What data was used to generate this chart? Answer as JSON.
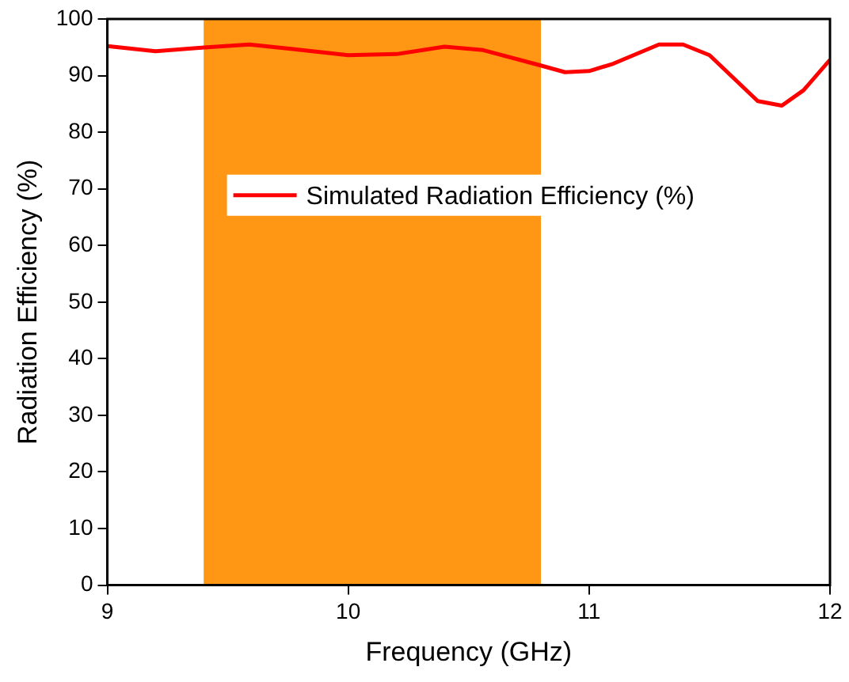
{
  "chart_data": {
    "type": "line",
    "xlabel": "Frequency (GHz)",
    "ylabel": "Radiation Efficiency (%)",
    "x": [
      9,
      9.2,
      9.38,
      9.59,
      9.77,
      10,
      10.2,
      10.4,
      10.56,
      10.79,
      10.9,
      11,
      11.1,
      11.29,
      11.39,
      11.5,
      11.7,
      11.8,
      11.89,
      12
    ],
    "series": [
      {
        "name": "Simulated Radiation Efficiency (%)",
        "color": "#ff0000",
        "values": [
          95.2,
          94.3,
          94.9,
          95.5,
          94.7,
          93.6,
          93.8,
          95.1,
          94.5,
          91.9,
          90.6,
          90.8,
          92.1,
          95.5,
          95.5,
          93.6,
          85.5,
          84.7,
          87.4,
          92.8
        ]
      }
    ],
    "bands": [
      {
        "axis": "x",
        "from": 9.4,
        "to": 10.8,
        "color": "#ff9614"
      }
    ],
    "xlim": [
      9,
      12
    ],
    "xticks": [
      9,
      10,
      11,
      12
    ],
    "ylim": [
      0,
      100
    ],
    "yticks": [
      0,
      10,
      20,
      30,
      40,
      50,
      60,
      70,
      80,
      90,
      100
    ],
    "grid": false,
    "legend": "top",
    "marker": "none",
    "line_style": "solid"
  }
}
